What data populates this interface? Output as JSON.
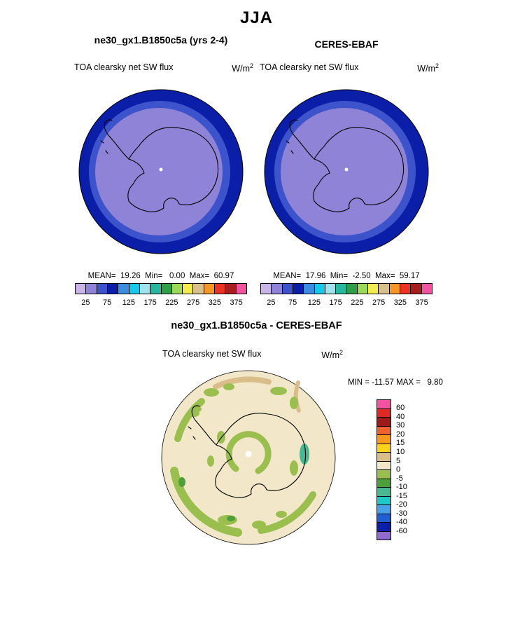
{
  "figure": {
    "title": "JJA"
  },
  "panels": [
    {
      "title": "ne30_gx1.B1850c5a (yrs 2-4)",
      "field_label": "TOA clearsky net SW flux",
      "units_base": "W/m",
      "units_exp": "2",
      "stats": "MEAN=  19.26  Min=   0.00  Max=  60.97"
    },
    {
      "title": "CERES-EBAF",
      "field_label": "TOA clearsky net SW flux",
      "units_base": "W/m",
      "units_exp": "2",
      "stats": "MEAN=  17.96  Min=  -2.50  Max=  59.17"
    }
  ],
  "diff_panel": {
    "title": "ne30_gx1.B1850c5a - CERES-EBAF",
    "field_label": "TOA clearsky net SW flux",
    "units_base": "W/m",
    "units_exp": "2",
    "minmax": "MIN = -11.57 MAX =   9.80"
  },
  "abs_colorbar": {
    "colors": [
      "#C9B5E8",
      "#8F83D7",
      "#3D53CC",
      "#0A1EA8",
      "#3C8CE0",
      "#18C8E8",
      "#9FE3EE",
      "#28B8A0",
      "#2E9E48",
      "#9CD957",
      "#F2EC50",
      "#D9C08A",
      "#F59627",
      "#EA3423",
      "#A81E1E",
      "#F253A0"
    ],
    "labels": [
      "25",
      "75",
      "125",
      "175",
      "225",
      "275",
      "325",
      "375"
    ]
  },
  "diff_colorbar": {
    "colors": [
      "#F253A0",
      "#DC2A24",
      "#9E1A1A",
      "#F2622E",
      "#F8981D",
      "#FFD21E",
      "#D9BE8C",
      "#F2E8C9",
      "#9ABF4E",
      "#4F9E3C",
      "#49B892",
      "#20C8C8",
      "#48A0E8",
      "#1E5FD2",
      "#0A1EA8",
      "#8F6BD0"
    ],
    "labels": [
      "60",
      "40",
      "30",
      "20",
      "15",
      "10",
      "5",
      "0",
      "-5",
      "-10",
      "-15",
      "-20",
      "-30",
      "-40",
      "-60"
    ]
  },
  "map_colors": {
    "polar_interior": "#8F83D7",
    "polar_mid_ring": "#3D53CC",
    "polar_outer_ring": "#0A1EA8",
    "diff_background": "#F2E8C9",
    "diff_green": "#9ABF4E",
    "diff_dark_green": "#4F9E3C",
    "diff_seafoam": "#49B892",
    "diff_tan": "#D9BE8C",
    "coastline": "#000000",
    "pole_dot": "#FFFFFF"
  },
  "chart_data": [
    {
      "type": "heatmap",
      "subtype": "south-polar-stereographic-map",
      "season": "JJA",
      "title": "ne30_gx1.B1850c5a (yrs 2-4)",
      "variable": "TOA clearsky net SW flux",
      "units": "W/m^2",
      "mean": 19.26,
      "min": 0.0,
      "max": 60.97,
      "contour_levels": [
        25,
        50,
        75,
        100,
        125,
        150,
        175,
        200,
        225,
        250,
        275,
        300,
        325,
        350,
        375
      ],
      "labeled_ticks": [
        25,
        75,
        125,
        175,
        225,
        275,
        325,
        375
      ],
      "legend_position": "bottom",
      "notes": "Low flux (purple) over Antarctic interior during polar night, increasing (blue ring) toward map edge"
    },
    {
      "type": "heatmap",
      "subtype": "south-polar-stereographic-map",
      "season": "JJA",
      "title": "CERES-EBAF",
      "variable": "TOA clearsky net SW flux",
      "units": "W/m^2",
      "mean": 17.96,
      "min": -2.5,
      "max": 59.17,
      "contour_levels": [
        25,
        50,
        75,
        100,
        125,
        150,
        175,
        200,
        225,
        250,
        275,
        300,
        325,
        350,
        375
      ],
      "labeled_ticks": [
        25,
        75,
        125,
        175,
        225,
        275,
        325,
        375
      ],
      "legend_position": "bottom",
      "notes": "Observational reference; same spatial pattern as model panel"
    },
    {
      "type": "heatmap",
      "subtype": "south-polar-stereographic-map",
      "season": "JJA",
      "title": "ne30_gx1.B1850c5a - CERES-EBAF",
      "variable": "TOA clearsky net SW flux",
      "units": "W/m^2",
      "min": -11.57,
      "max": 9.8,
      "contour_levels": [
        -60,
        -40,
        -30,
        -20,
        -15,
        -10,
        -5,
        0,
        5,
        10,
        15,
        20,
        30,
        40,
        60
      ],
      "legend_position": "right",
      "notes": "Difference map: mostly 0 to 5 (beige) with scattered -5 to 0 (green) patches and small 5 to 10 (tan) streaks"
    }
  ]
}
